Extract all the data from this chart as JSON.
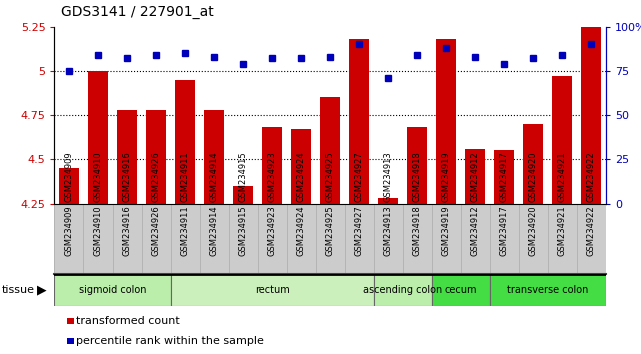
{
  "title": "GDS3141 / 227901_at",
  "samples": [
    "GSM234909",
    "GSM234910",
    "GSM234916",
    "GSM234926",
    "GSM234911",
    "GSM234914",
    "GSM234915",
    "GSM234923",
    "GSM234924",
    "GSM234925",
    "GSM234927",
    "GSM234913",
    "GSM234918",
    "GSM234919",
    "GSM234912",
    "GSM234917",
    "GSM234920",
    "GSM234921",
    "GSM234922"
  ],
  "bar_values": [
    4.45,
    5.0,
    4.78,
    4.78,
    4.95,
    4.78,
    4.35,
    4.68,
    4.67,
    4.85,
    5.18,
    4.28,
    4.68,
    5.18,
    4.56,
    4.55,
    4.7,
    4.97,
    5.25
  ],
  "percentile_values": [
    75,
    84,
    82,
    84,
    85,
    83,
    79,
    82,
    82,
    83,
    90,
    71,
    84,
    88,
    83,
    79,
    82,
    84,
    90
  ],
  "ylim_left": [
    4.25,
    5.25
  ],
  "ylim_right": [
    0,
    100
  ],
  "yticks_left": [
    4.25,
    4.5,
    4.75,
    5.0,
    5.25
  ],
  "yticks_right": [
    0,
    25,
    50,
    75,
    100
  ],
  "ytick_labels_left": [
    "4.25",
    "4.5",
    "4.75",
    "5",
    "5.25"
  ],
  "ytick_labels_right": [
    "0",
    "25",
    "50",
    "75",
    "100%"
  ],
  "hlines": [
    5.0,
    4.75,
    4.5
  ],
  "bar_color": "#cc0000",
  "dot_color": "#0000bb",
  "bg_color": "#ffffff",
  "plot_bg": "#ffffff",
  "xticklabel_bg": "#cccccc",
  "tissue_groups": [
    {
      "label": "sigmoid colon",
      "start": 0,
      "end": 3,
      "color": "#bbeeaa"
    },
    {
      "label": "rectum",
      "start": 4,
      "end": 10,
      "color": "#ccf0bb"
    },
    {
      "label": "ascending colon",
      "start": 11,
      "end": 12,
      "color": "#bbeeaa"
    },
    {
      "label": "cecum",
      "start": 13,
      "end": 14,
      "color": "#44dd44"
    },
    {
      "label": "transverse colon",
      "start": 15,
      "end": 18,
      "color": "#44dd44"
    }
  ],
  "legend_items": [
    {
      "color": "#cc0000",
      "label": "transformed count"
    },
    {
      "color": "#0000bb",
      "label": "percentile rank within the sample"
    }
  ],
  "bar_width": 0.7
}
